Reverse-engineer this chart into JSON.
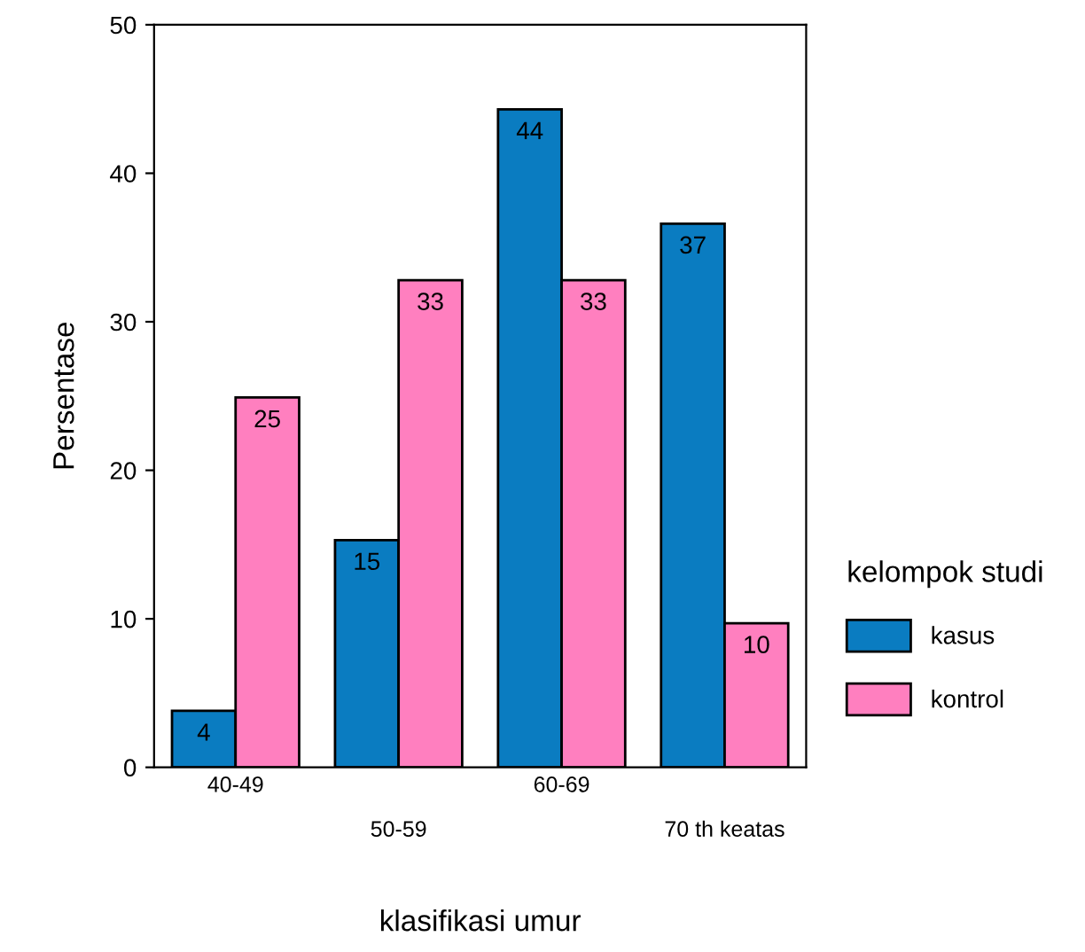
{
  "chart_data": {
    "type": "bar",
    "xlabel": "klasifikasi umur",
    "ylabel": "Persentase",
    "legend_title": "kelompok studi",
    "legend": "right",
    "categories": [
      "40-49",
      "50-59",
      "60-69",
      "70 th keatas"
    ],
    "series": [
      {
        "name": "kasus",
        "color": "#0a7cc1",
        "values": [
          3.8,
          15.3,
          44.3,
          36.6
        ],
        "value_labels": [
          "4",
          "15",
          "44",
          "37"
        ]
      },
      {
        "name": "kontrol",
        "color": "#ff7fbf",
        "values": [
          24.9,
          32.8,
          32.8,
          9.7
        ],
        "value_labels": [
          "25",
          "33",
          "33",
          "10"
        ]
      }
    ],
    "ylim": [
      0,
      50
    ],
    "yticks": [
      0,
      10,
      20,
      30,
      40,
      50
    ],
    "grid": false
  }
}
